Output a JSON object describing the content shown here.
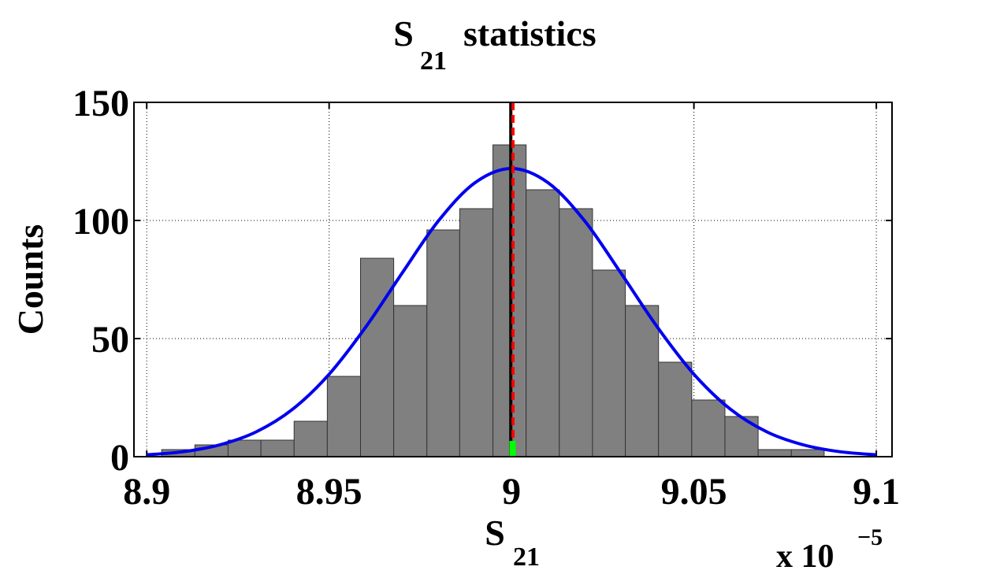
{
  "chart_data": {
    "type": "histogram",
    "title": {
      "main": "S",
      "sub": "21",
      "rest": "statistics"
    },
    "xlabel": {
      "main": "S",
      "sub": "21"
    },
    "ylabel": "Counts",
    "x_multiplier": {
      "base": "x 10",
      "exponent": "−5"
    },
    "bins": [
      8.9041,
      8.9132,
      8.9223,
      8.9313,
      8.9404,
      8.9495,
      8.9586,
      8.9677,
      8.9768,
      8.9858,
      8.9949,
      9.004,
      9.0131,
      9.0222,
      9.0312,
      9.0403,
      9.0494,
      9.0585,
      9.0676,
      9.0767,
      9.0857
    ],
    "values": [
      3,
      5,
      7,
      7,
      15,
      34,
      84,
      64,
      96,
      105,
      132,
      113,
      105,
      79,
      64,
      40,
      24,
      17,
      3,
      3
    ],
    "color": "#808080",
    "fit": {
      "color": "#0000ee",
      "x": [
        8.9,
        8.91,
        8.92,
        8.93,
        8.94,
        8.95,
        8.96,
        8.97,
        8.98,
        8.99,
        9.0,
        9.01,
        9.02,
        9.03,
        9.04,
        9.05,
        9.06,
        9.07,
        9.08,
        9.09,
        9.1
      ],
      "values": [
        0.8,
        2.1,
        5.0,
        10.5,
        20.1,
        34.9,
        54.8,
        77.7,
        99.9,
        116.0,
        122,
        116.0,
        99.9,
        77.7,
        54.8,
        34.9,
        20.1,
        10.5,
        5.0,
        2.1,
        0.8
      ]
    },
    "vlines": [
      {
        "x": 8.9998,
        "color": "#000000",
        "style": "solid"
      },
      {
        "x": 9.0004,
        "color": "#ff0000",
        "style": "dashed"
      }
    ],
    "marker": {
      "x": 9.0003,
      "color": "#00ff00"
    },
    "xlim": [
      8.8965,
      9.1043
    ],
    "ylim": [
      0,
      150
    ],
    "xticks": [
      8.9,
      8.95,
      9,
      9.05,
      9.1
    ],
    "yticks": [
      0,
      50,
      100,
      150
    ],
    "grid": true
  }
}
